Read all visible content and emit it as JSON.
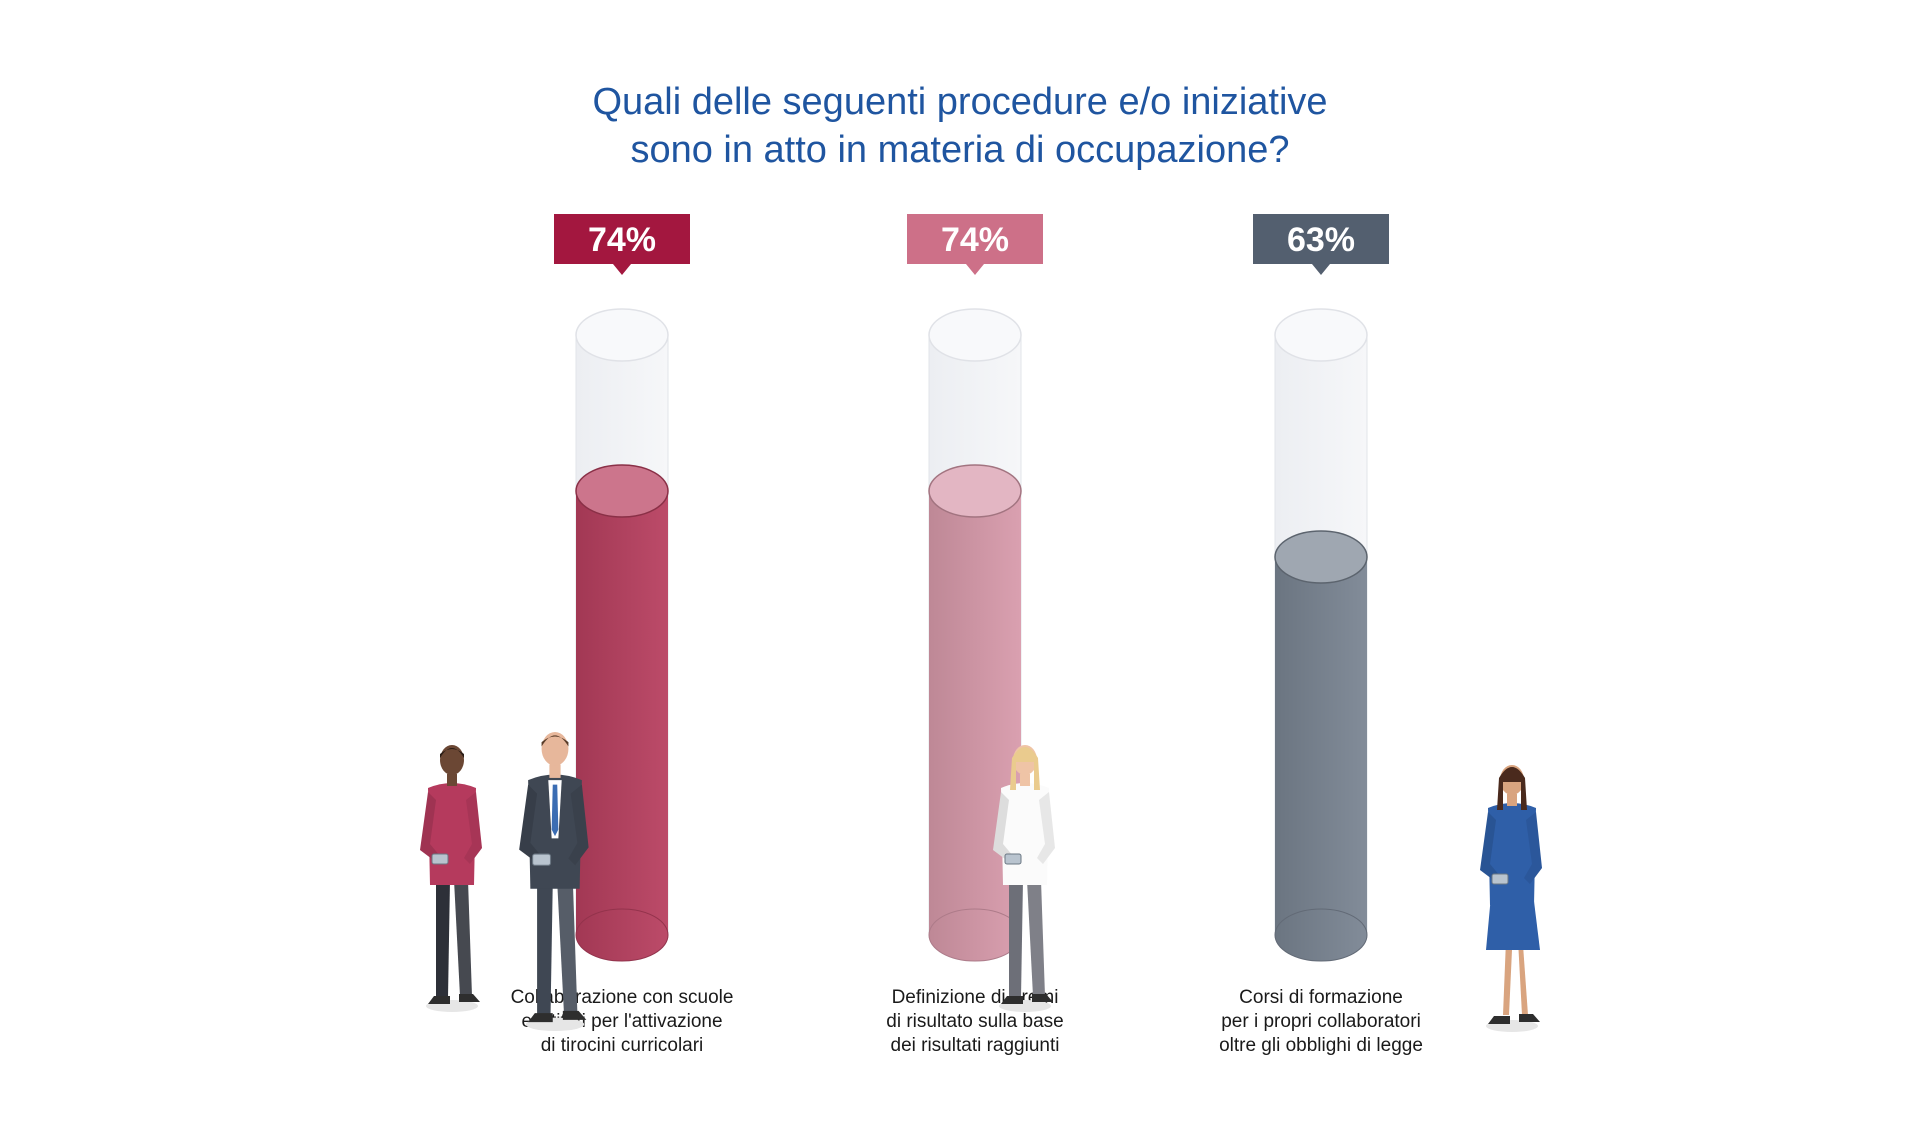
{
  "title_lines": [
    "Quali delle seguenti procedure e/o iniziative",
    "sono in atto in materia di occupazione?"
  ],
  "chart_data": {
    "type": "bar",
    "title": "Quali delle seguenti procedure e/o iniziative sono in atto in materia di occupazione?",
    "unit": "%",
    "ylim": [
      0,
      100
    ],
    "grid": false,
    "categories": [
      "Collaborazione con scuole e istituti per l'attivazione di tirocini curricolari",
      "Definizione di premi di risultato sulla base dei risultati raggiunti",
      "Corsi di formazione per i propri collaboratori oltre gli obblighi di legge"
    ],
    "category_lines": [
      [
        "Collaborazione con scuole",
        "e istituti per l'attivazione",
        "di tirocini curricolari"
      ],
      [
        "Definizione di premi",
        "di risultato sulla base",
        "dei risultati raggiunti"
      ],
      [
        "Corsi di formazione",
        "per i propri collaboratori",
        "oltre gli obblighi di legge"
      ]
    ],
    "values": [
      74,
      74,
      63
    ],
    "value_labels": [
      "74%",
      "74%",
      "63%"
    ],
    "colors": [
      "#a3173f",
      "#cd7088",
      "#535f6f"
    ],
    "fill_colors": [
      "#b8405f",
      "#d89aab",
      "#7a8593"
    ]
  }
}
